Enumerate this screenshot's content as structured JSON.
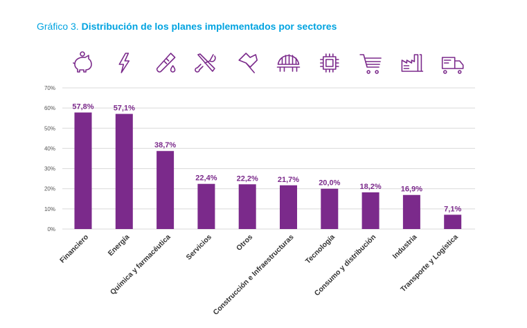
{
  "chart_data": {
    "type": "bar",
    "title_prefix": "Gráfico 3.",
    "title": "Distribución de los planes implementados por sectores",
    "categories": [
      "Financiero",
      "Energía",
      "Química y farmacéutica",
      "Servicios",
      "Otros",
      "Construcción e Infraestructuras",
      "Tecnología",
      "Consumo y distribución",
      "Industria",
      "Transporte y Logística"
    ],
    "values": [
      57.8,
      57.1,
      38.7,
      22.4,
      22.2,
      21.7,
      20.0,
      18.2,
      16.9,
      7.1
    ],
    "data_labels": [
      "57,8%",
      "57,1%",
      "38,7%",
      "22,4%",
      "22,2%",
      "21,7%",
      "20,0%",
      "18,2%",
      "16,9%",
      "7,1%"
    ],
    "icons": [
      "piggy-bank-icon",
      "lightning-icon",
      "test-tube-icon",
      "tools-icon",
      "flag-icon",
      "bridge-icon",
      "chip-icon",
      "shopping-cart-icon",
      "factory-icon",
      "truck-icon"
    ],
    "ylim": [
      0,
      70
    ],
    "yticks": [
      "0%",
      "10%",
      "20%",
      "30%",
      "40%",
      "50%",
      "60%",
      "70%"
    ],
    "grid": true,
    "xlabel": "",
    "ylabel": "",
    "colors": {
      "bar": "#7b2a8b",
      "title": "#00a3e0",
      "grid": "#d9d9d9"
    }
  }
}
